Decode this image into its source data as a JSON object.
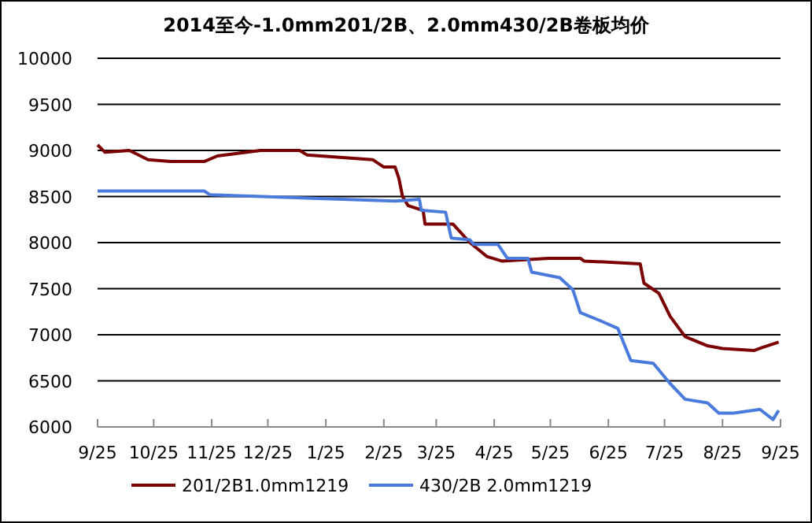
{
  "chart_data": {
    "type": "line",
    "title": "2014至今-1.0mm201/2B、2.0mm430/2B卷板均价",
    "xlim": [
      "2014-09-25",
      "2015-09-25"
    ],
    "xticks": [
      {
        "value": "2014-09-25",
        "label": "9/25"
      },
      {
        "value": "2014-10-25",
        "label": "10/25"
      },
      {
        "value": "2014-11-25",
        "label": "11/25"
      },
      {
        "value": "2014-12-25",
        "label": "12/25"
      },
      {
        "value": "2015-01-25",
        "label": "1/25"
      },
      {
        "value": "2015-02-25",
        "label": "2/25"
      },
      {
        "value": "2015-03-25",
        "label": "3/25"
      },
      {
        "value": "2015-04-25",
        "label": "4/25"
      },
      {
        "value": "2015-05-25",
        "label": "5/25"
      },
      {
        "value": "2015-06-25",
        "label": "6/25"
      },
      {
        "value": "2015-07-25",
        "label": "7/25"
      },
      {
        "value": "2015-08-25",
        "label": "8/25"
      },
      {
        "value": "2015-09-25",
        "label": "9/25"
      }
    ],
    "ylim": [
      6000,
      10000
    ],
    "yticks": [
      6000,
      6500,
      7000,
      7500,
      8000,
      8500,
      9000,
      9500,
      10000
    ],
    "grid": "y",
    "legend": "bottom",
    "marker": "none",
    "line_style": "solid",
    "series": [
      {
        "name": "201/2B1.0mm1219",
        "color": "#7b0000",
        "x": [
          "2014-09-25",
          "2014-09-29",
          "2014-10-12",
          "2014-10-22",
          "2014-11-03",
          "2014-11-21",
          "2014-11-28",
          "2014-12-21",
          "2015-01-11",
          "2015-01-15",
          "2015-02-19",
          "2015-02-25",
          "2015-03-03",
          "2015-03-05",
          "2015-03-07",
          "2015-03-10",
          "2015-03-18",
          "2015-03-19",
          "2015-04-03",
          "2015-04-12",
          "2015-04-21",
          "2015-04-29",
          "2015-05-24",
          "2015-06-10",
          "2015-06-12",
          "2015-07-12",
          "2015-07-14",
          "2015-07-22",
          "2015-07-28",
          "2015-08-05",
          "2015-08-17",
          "2015-08-25",
          "2015-09-11",
          "2015-09-15",
          "2015-09-24"
        ],
        "values": [
          9060,
          8980,
          9000,
          8900,
          8880,
          8880,
          8940,
          9000,
          9000,
          8950,
          8900,
          8820,
          8820,
          8700,
          8500,
          8400,
          8350,
          8200,
          8200,
          8000,
          7850,
          7800,
          7830,
          7830,
          7800,
          7770,
          7560,
          7450,
          7200,
          6980,
          6880,
          6850,
          6830,
          6860,
          6920
        ]
      },
      {
        "name": "430/2B 2.0mm1219",
        "color": "#4a7bdc",
        "x": [
          "2014-09-25",
          "2014-11-21",
          "2014-11-24",
          "2015-03-03",
          "2015-03-16",
          "2015-03-17",
          "2015-03-30",
          "2015-04-02",
          "2015-04-12",
          "2015-04-14",
          "2015-04-27",
          "2015-05-02",
          "2015-05-13",
          "2015-05-15",
          "2015-05-30",
          "2015-06-06",
          "2015-06-10",
          "2015-06-21",
          "2015-06-30",
          "2015-07-07",
          "2015-07-19",
          "2015-07-28",
          "2015-08-05",
          "2015-08-17",
          "2015-08-23",
          "2015-08-31",
          "2015-09-14",
          "2015-09-21",
          "2015-09-24"
        ],
        "values": [
          8560,
          8560,
          8520,
          8450,
          8470,
          8350,
          8330,
          8050,
          8030,
          7980,
          7980,
          7830,
          7830,
          7680,
          7620,
          7490,
          7240,
          7150,
          7070,
          6720,
          6690,
          6470,
          6300,
          6260,
          6150,
          6150,
          6190,
          6080,
          6180
        ]
      }
    ]
  }
}
